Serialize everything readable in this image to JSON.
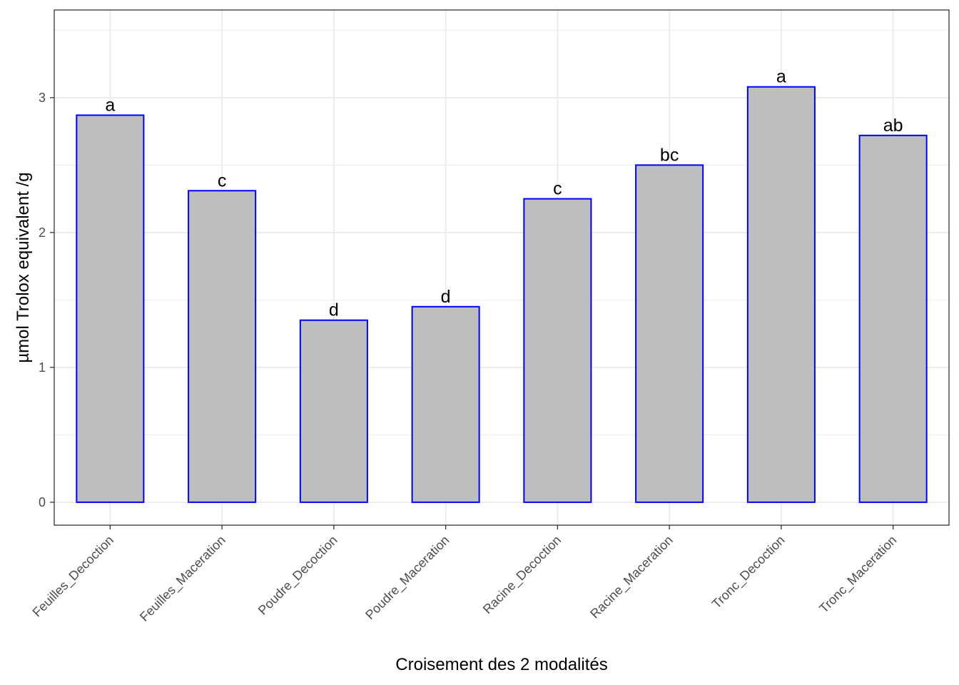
{
  "chart_data": {
    "type": "bar",
    "title": "",
    "xlabel": "Croisement des 2 modalités",
    "ylabel": "µmol Trolox equivalent /g",
    "categories": [
      "Feuilles_Decoction",
      "Feuilles_Maceration",
      "Poudre_Decoction",
      "Poudre_Maceration",
      "Racine_Decoction",
      "Racine_Maceration",
      "Tronc_Decoction",
      "Tronc_Maceration"
    ],
    "values": [
      2.87,
      2.31,
      1.35,
      1.45,
      2.25,
      2.5,
      3.08,
      2.72
    ],
    "letters": [
      "a",
      "c",
      "d",
      "d",
      "c",
      "bc",
      "a",
      "ab"
    ],
    "ylim": [
      -0.17,
      3.65
    ],
    "yticks": [
      0,
      1,
      2,
      3
    ],
    "grid": true,
    "legend": "none",
    "colors": {
      "bar_fill": "#bebebe",
      "bar_stroke": "#0000ff",
      "grid": "#ebebeb",
      "panel_border": "#333333"
    }
  }
}
